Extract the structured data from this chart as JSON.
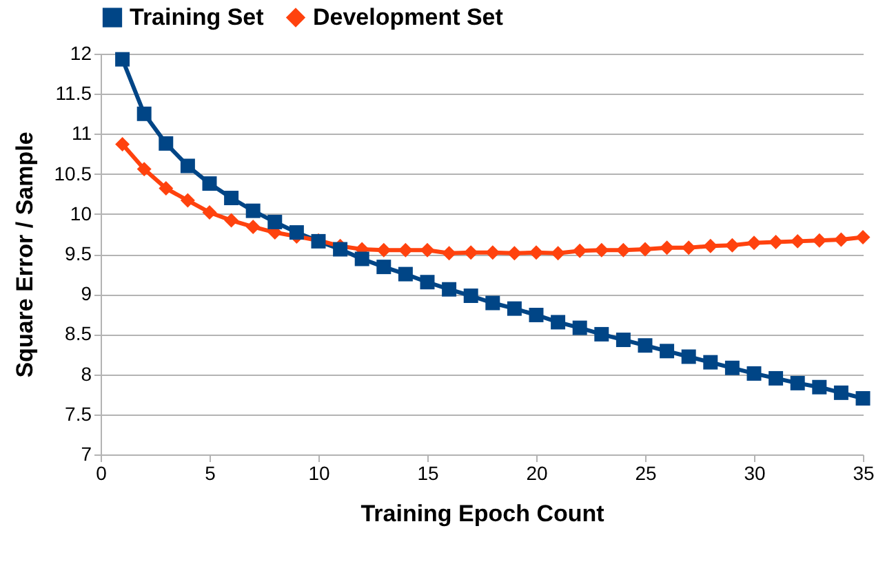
{
  "chart_data": {
    "type": "line",
    "xlabel": "Training Epoch Count",
    "ylabel": "Square Error / Sample",
    "x": [
      1,
      2,
      3,
      4,
      5,
      6,
      7,
      8,
      9,
      10,
      11,
      12,
      13,
      14,
      15,
      16,
      17,
      18,
      19,
      20,
      21,
      22,
      23,
      24,
      25,
      26,
      27,
      28,
      29,
      30,
      31,
      32,
      33,
      34,
      35
    ],
    "series": [
      {
        "name": "Training Set",
        "color": "#004586",
        "marker": "square",
        "values": [
          11.93,
          11.25,
          10.88,
          10.6,
          10.38,
          10.2,
          10.04,
          9.9,
          9.77,
          9.66,
          9.56,
          9.44,
          9.34,
          9.25,
          9.15,
          9.06,
          8.98,
          8.89,
          8.82,
          8.74,
          8.65,
          8.58,
          8.5,
          8.43,
          8.36,
          8.29,
          8.22,
          8.15,
          8.08,
          8.01,
          7.95,
          7.89,
          7.84,
          7.77,
          7.7
        ]
      },
      {
        "name": "Development Set",
        "color": "#ff420e",
        "marker": "diamond",
        "values": [
          10.87,
          10.56,
          10.32,
          10.17,
          10.02,
          9.92,
          9.84,
          9.77,
          9.72,
          9.67,
          9.6,
          9.56,
          9.55,
          9.55,
          9.55,
          9.51,
          9.52,
          9.52,
          9.51,
          9.52,
          9.51,
          9.54,
          9.55,
          9.55,
          9.56,
          9.58,
          9.58,
          9.6,
          9.61,
          9.64,
          9.65,
          9.66,
          9.67,
          9.68,
          9.71
        ]
      }
    ],
    "xlim": [
      0,
      35
    ],
    "xticks": [
      0,
      5,
      10,
      15,
      20,
      25,
      30,
      35
    ],
    "ylim": [
      7,
      12
    ],
    "yticks": [
      7,
      7.5,
      8,
      8.5,
      9,
      9.5,
      10,
      10.5,
      11,
      11.5,
      12
    ],
    "grid": "y",
    "legend": "top",
    "line_style": "solid"
  }
}
